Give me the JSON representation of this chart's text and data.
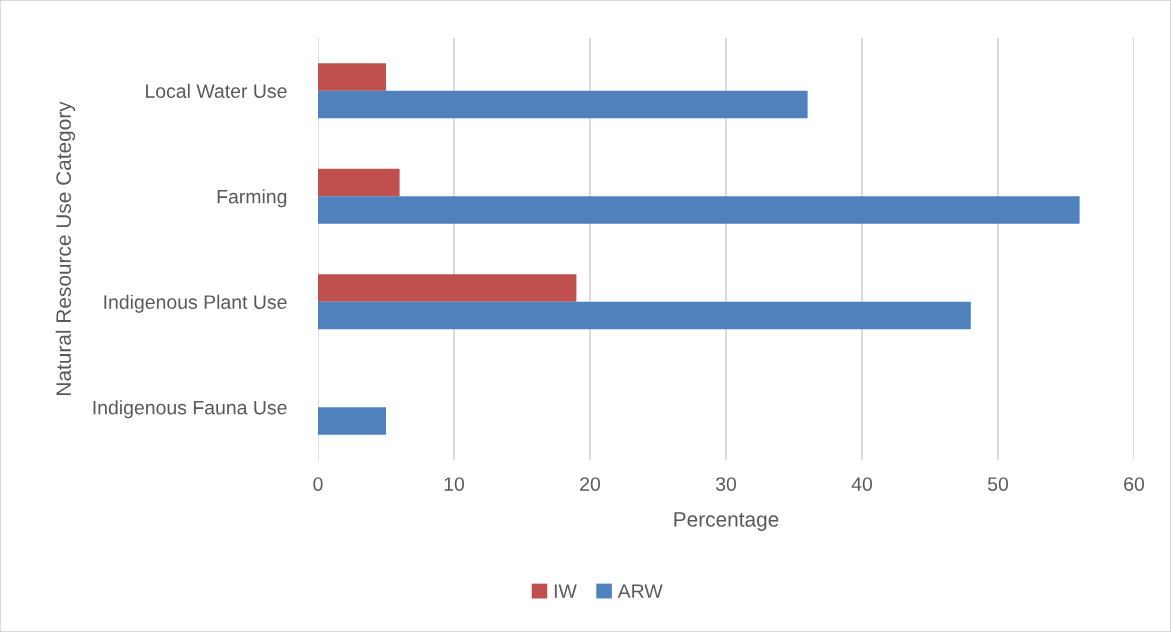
{
  "chart_data": {
    "type": "bar",
    "orientation": "horizontal",
    "categories": [
      "Local Water Use",
      "Farming",
      "Indigenous Plant Use",
      "Indigenous Fauna Use"
    ],
    "series": [
      {
        "name": "IW",
        "color": "#c0504d",
        "values": [
          5,
          6,
          19,
          null
        ]
      },
      {
        "name": "ARW",
        "color": "#4f81bd",
        "values": [
          36,
          56,
          48,
          5
        ]
      }
    ],
    "xlabel": "Percentage",
    "ylabel": "Natural Resource Use Category",
    "xlim": [
      0,
      60
    ],
    "xticks": [
      0,
      10,
      20,
      30,
      40,
      50,
      60
    ],
    "grid": "x",
    "legend": "bottom"
  }
}
